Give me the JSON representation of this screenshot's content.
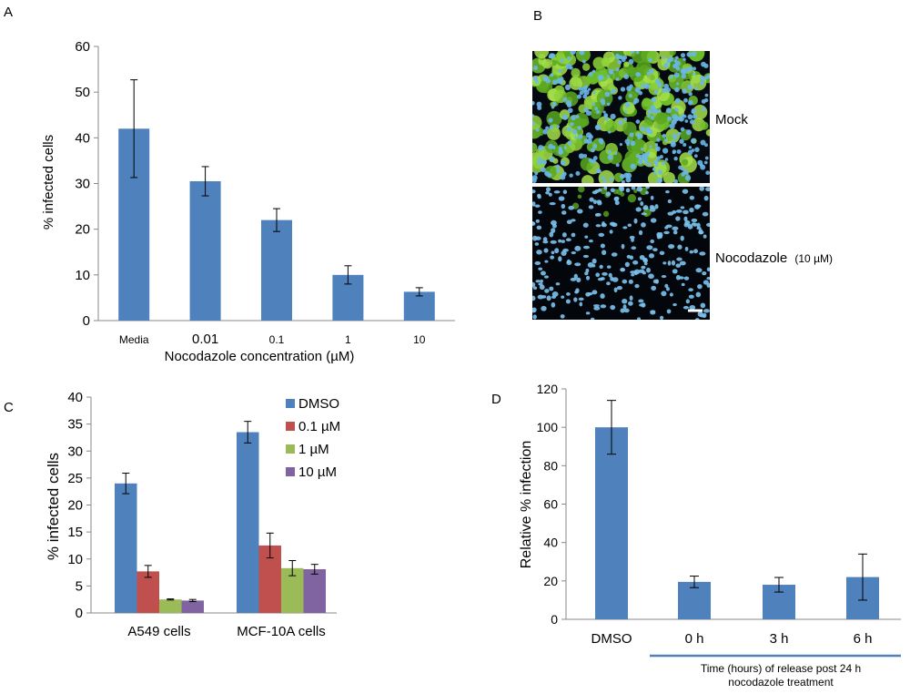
{
  "chart_data": [
    {
      "panel": "A",
      "type": "bar",
      "title": "",
      "xlabel": "Nocodazole concentration (µM)",
      "ylabel": "% infected cells",
      "ylim": [
        0,
        60
      ],
      "yticks": [
        "0",
        "10",
        "20",
        "30",
        "40",
        "50",
        "60"
      ],
      "categories": [
        "Media",
        "0.01",
        "0.1",
        "1",
        "10"
      ],
      "values": [
        42,
        30.5,
        22,
        10,
        6.3
      ],
      "errors": [
        10.7,
        3.2,
        2.5,
        2,
        0.9
      ],
      "colors": {
        "bar": "#4f81bd"
      }
    },
    {
      "panel": "C",
      "type": "bar",
      "title": "",
      "xlabel": "",
      "ylabel": "% infected cells",
      "ylim": [
        0,
        40
      ],
      "yticks": [
        "0",
        "5",
        "10",
        "15",
        "20",
        "25",
        "30",
        "35",
        "40"
      ],
      "categories": [
        "A549 cells",
        "MCF-10A cells"
      ],
      "series": [
        {
          "name": "DMSO",
          "values": [
            24,
            33.5
          ],
          "errors": [
            1.9,
            2
          ],
          "color": "#4f81bd"
        },
        {
          "name": "0.1 µM",
          "values": [
            7.7,
            12.5
          ],
          "errors": [
            1.1,
            2.3
          ],
          "color": "#c0504d"
        },
        {
          "name": "1 µM",
          "values": [
            2.5,
            8.3
          ],
          "errors": [
            0.1,
            1.4
          ],
          "color": "#9bbb59"
        },
        {
          "name": "10 µM",
          "values": [
            2.3,
            8.1
          ],
          "errors": [
            0.2,
            0.9
          ],
          "color": "#8064a2"
        }
      ],
      "legend": "top-right"
    },
    {
      "panel": "D",
      "type": "bar",
      "title": "",
      "xlabel": "",
      "ylabel": "Relative % infection",
      "ylim": [
        0,
        120
      ],
      "yticks": [
        "0",
        "20",
        "40",
        "60",
        "80",
        "100",
        "120"
      ],
      "categories": [
        "DMSO",
        "0 h",
        "3 h",
        "6 h"
      ],
      "values": [
        100,
        19.5,
        18,
        22
      ],
      "errors": [
        14,
        3,
        3.8,
        12
      ],
      "colors": {
        "bar": "#4f81bd",
        "bracket": "#4f81bd"
      },
      "annotation": [
        "Time (hours) of release post 24 h",
        "nocodazole treatment"
      ]
    }
  ],
  "panel_labels": {
    "a": "A",
    "b": "B",
    "c": "C",
    "d": "D"
  },
  "panel_b": {
    "top_label": "Mock",
    "bottom_label": "Nocodazole",
    "bottom_label_unit": "(10 µM)"
  }
}
